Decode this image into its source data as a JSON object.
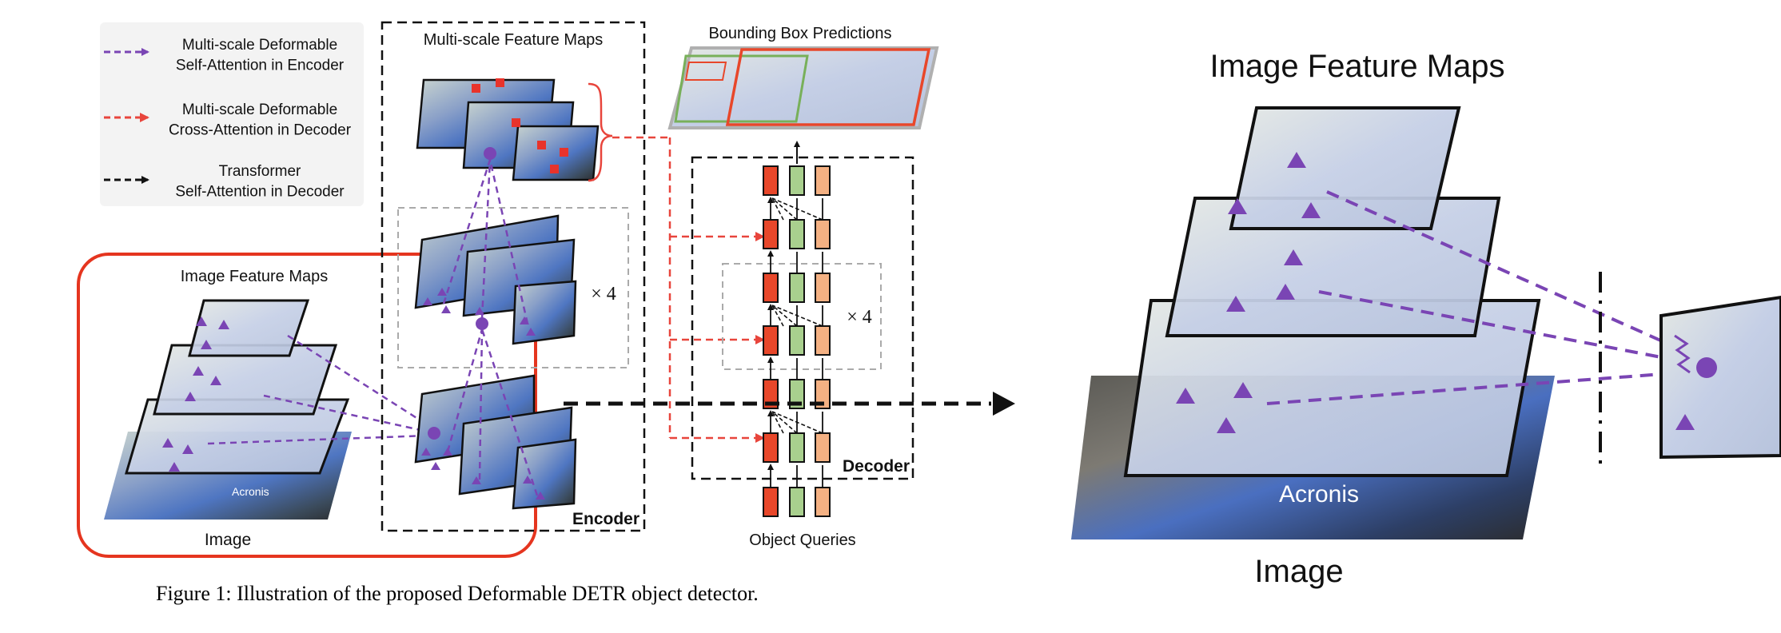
{
  "legend": {
    "encoder_attention": "Multi-scale Deformable\nSelf-Attention in Encoder",
    "decoder_cross_attention": "Multi-scale Deformable\nCross-Attention in Decoder",
    "decoder_self_attention": "Transformer\nSelf-Attention in Decoder"
  },
  "labels": {
    "multiscale_feature_maps": "Multi-scale Feature Maps",
    "bounding_box_predictions": "Bounding Box Predictions",
    "image_feature_maps_left": "Image Feature Maps",
    "image_left": "Image",
    "encoder": "Encoder",
    "decoder": "Decoder",
    "object_queries": "Object Queries",
    "encoder_repeat": "× 4",
    "decoder_repeat": "× 4",
    "image_feature_maps_zoom": "Image Feature Maps",
    "image_zoom": "Image",
    "photo_text": "Acronis"
  },
  "caption": "Figure 1: Illustration of the proposed Deformable DETR object detector.",
  "colors": {
    "encoder_attention": "#7a45b4",
    "decoder_cross_attention": "#e8453c",
    "highlight_box": "#e5351f",
    "query_red": "#e8472a",
    "query_green": "#a9d08e",
    "query_orange": "#f4b183",
    "photo_sky": "#4a72c4"
  }
}
